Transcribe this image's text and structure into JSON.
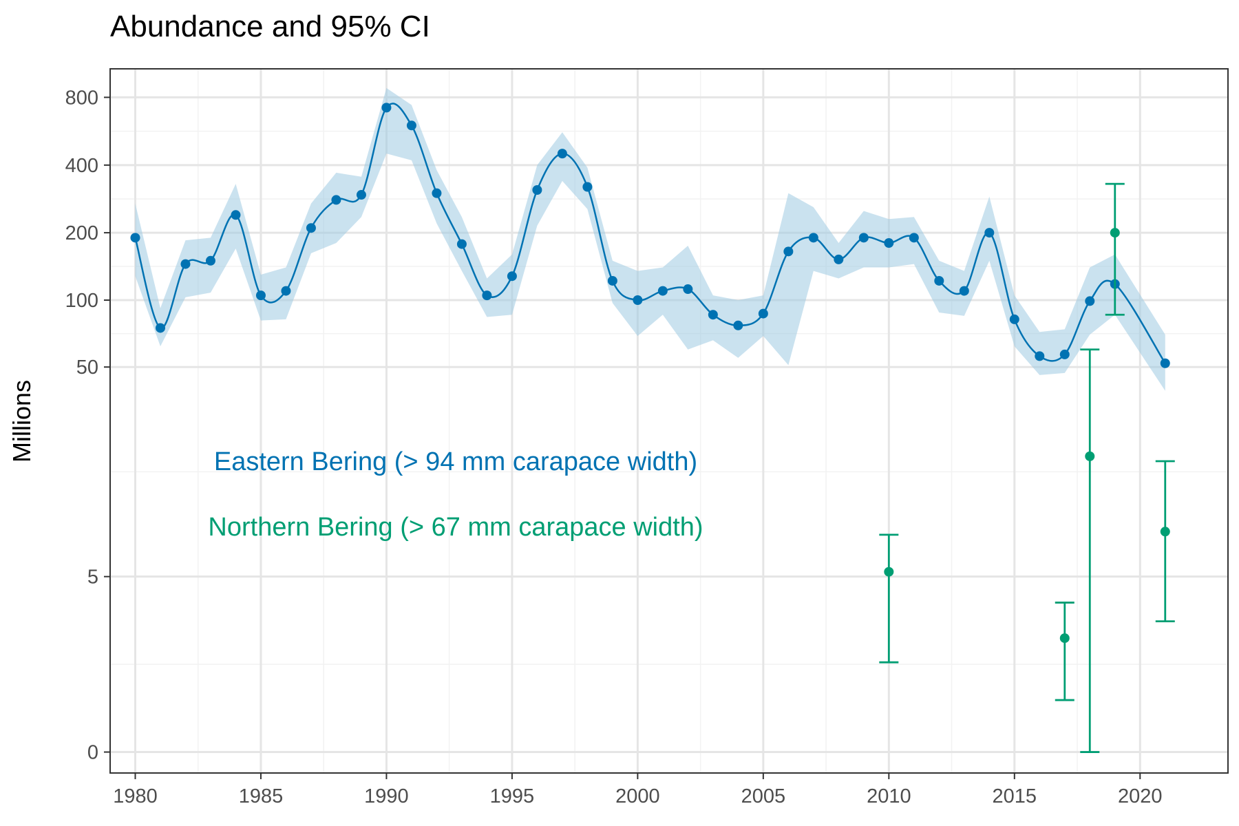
{
  "chart_data": {
    "type": "line",
    "title": "Abundance and 95% CI",
    "xlabel": "",
    "ylabel": "Millions",
    "x_ticks": [
      1980,
      1985,
      1990,
      1995,
      2000,
      2005,
      2010,
      2015,
      2020
    ],
    "y_ticks": [
      0,
      5,
      50,
      100,
      200,
      400,
      800
    ],
    "xlim": [
      1979,
      2023.5
    ],
    "y_scale": "log1p",
    "grid": true,
    "legend": "none",
    "series": [
      {
        "name": "Eastern Bering (> 94 mm carapace width)",
        "color": "#0072B2",
        "band_color": "#9ecae1",
        "style": "line-with-points-and-ribbon",
        "x": [
          1980,
          1981,
          1982,
          1983,
          1984,
          1985,
          1986,
          1987,
          1988,
          1989,
          1990,
          1991,
          1992,
          1993,
          1994,
          1995,
          1996,
          1997,
          1998,
          1999,
          2000,
          2001,
          2002,
          2003,
          2004,
          2005,
          2006,
          2007,
          2008,
          2009,
          2010,
          2011,
          2012,
          2013,
          2014,
          2015,
          2016,
          2017,
          2018,
          2019,
          2021
        ],
        "values": [
          190,
          75,
          145,
          150,
          240,
          105,
          110,
          210,
          280,
          295,
          720,
          600,
          300,
          178,
          105,
          128,
          310,
          450,
          320,
          122,
          100,
          110,
          112,
          86,
          77,
          87,
          165,
          190,
          152,
          190,
          180,
          190,
          122,
          110,
          200,
          82,
          56,
          57,
          99,
          118,
          52
        ],
        "lower": [
          128,
          62,
          103,
          108,
          170,
          81,
          82,
          162,
          180,
          235,
          450,
          420,
          220,
          135,
          84,
          86,
          215,
          340,
          255,
          97,
          69,
          86,
          60,
          66,
          55,
          69,
          51,
          135,
          125,
          140,
          140,
          145,
          88,
          85,
          150,
          62,
          46,
          47,
          70,
          86,
          39
        ],
        "upper": [
          270,
          92,
          185,
          190,
          330,
          130,
          140,
          270,
          370,
          355,
          880,
          740,
          380,
          235,
          125,
          160,
          400,
          560,
          390,
          150,
          135,
          140,
          175,
          105,
          100,
          105,
          300,
          260,
          180,
          250,
          230,
          235,
          150,
          135,
          290,
          105,
          72,
          74,
          140,
          160,
          70
        ]
      },
      {
        "name": "Northern Bering (> 67 mm carapace width)",
        "color": "#009E73",
        "style": "points-with-errorbars",
        "x": [
          2010,
          2017,
          2018,
          2019,
          2021
        ],
        "values": [
          5.3,
          2.2,
          19.5,
          200,
          8.5
        ],
        "lower": [
          1.5,
          0.7,
          0,
          86,
          2.8
        ],
        "upper": [
          8.2,
          3.6,
          60,
          330,
          18.5
        ]
      }
    ],
    "annotations": [
      {
        "text": "Eastern Bering (> 94 mm carapace width)",
        "color": "#0072B2"
      },
      {
        "text": "Northern Bering (> 67 mm carapace width)",
        "color": "#009E73"
      }
    ]
  }
}
